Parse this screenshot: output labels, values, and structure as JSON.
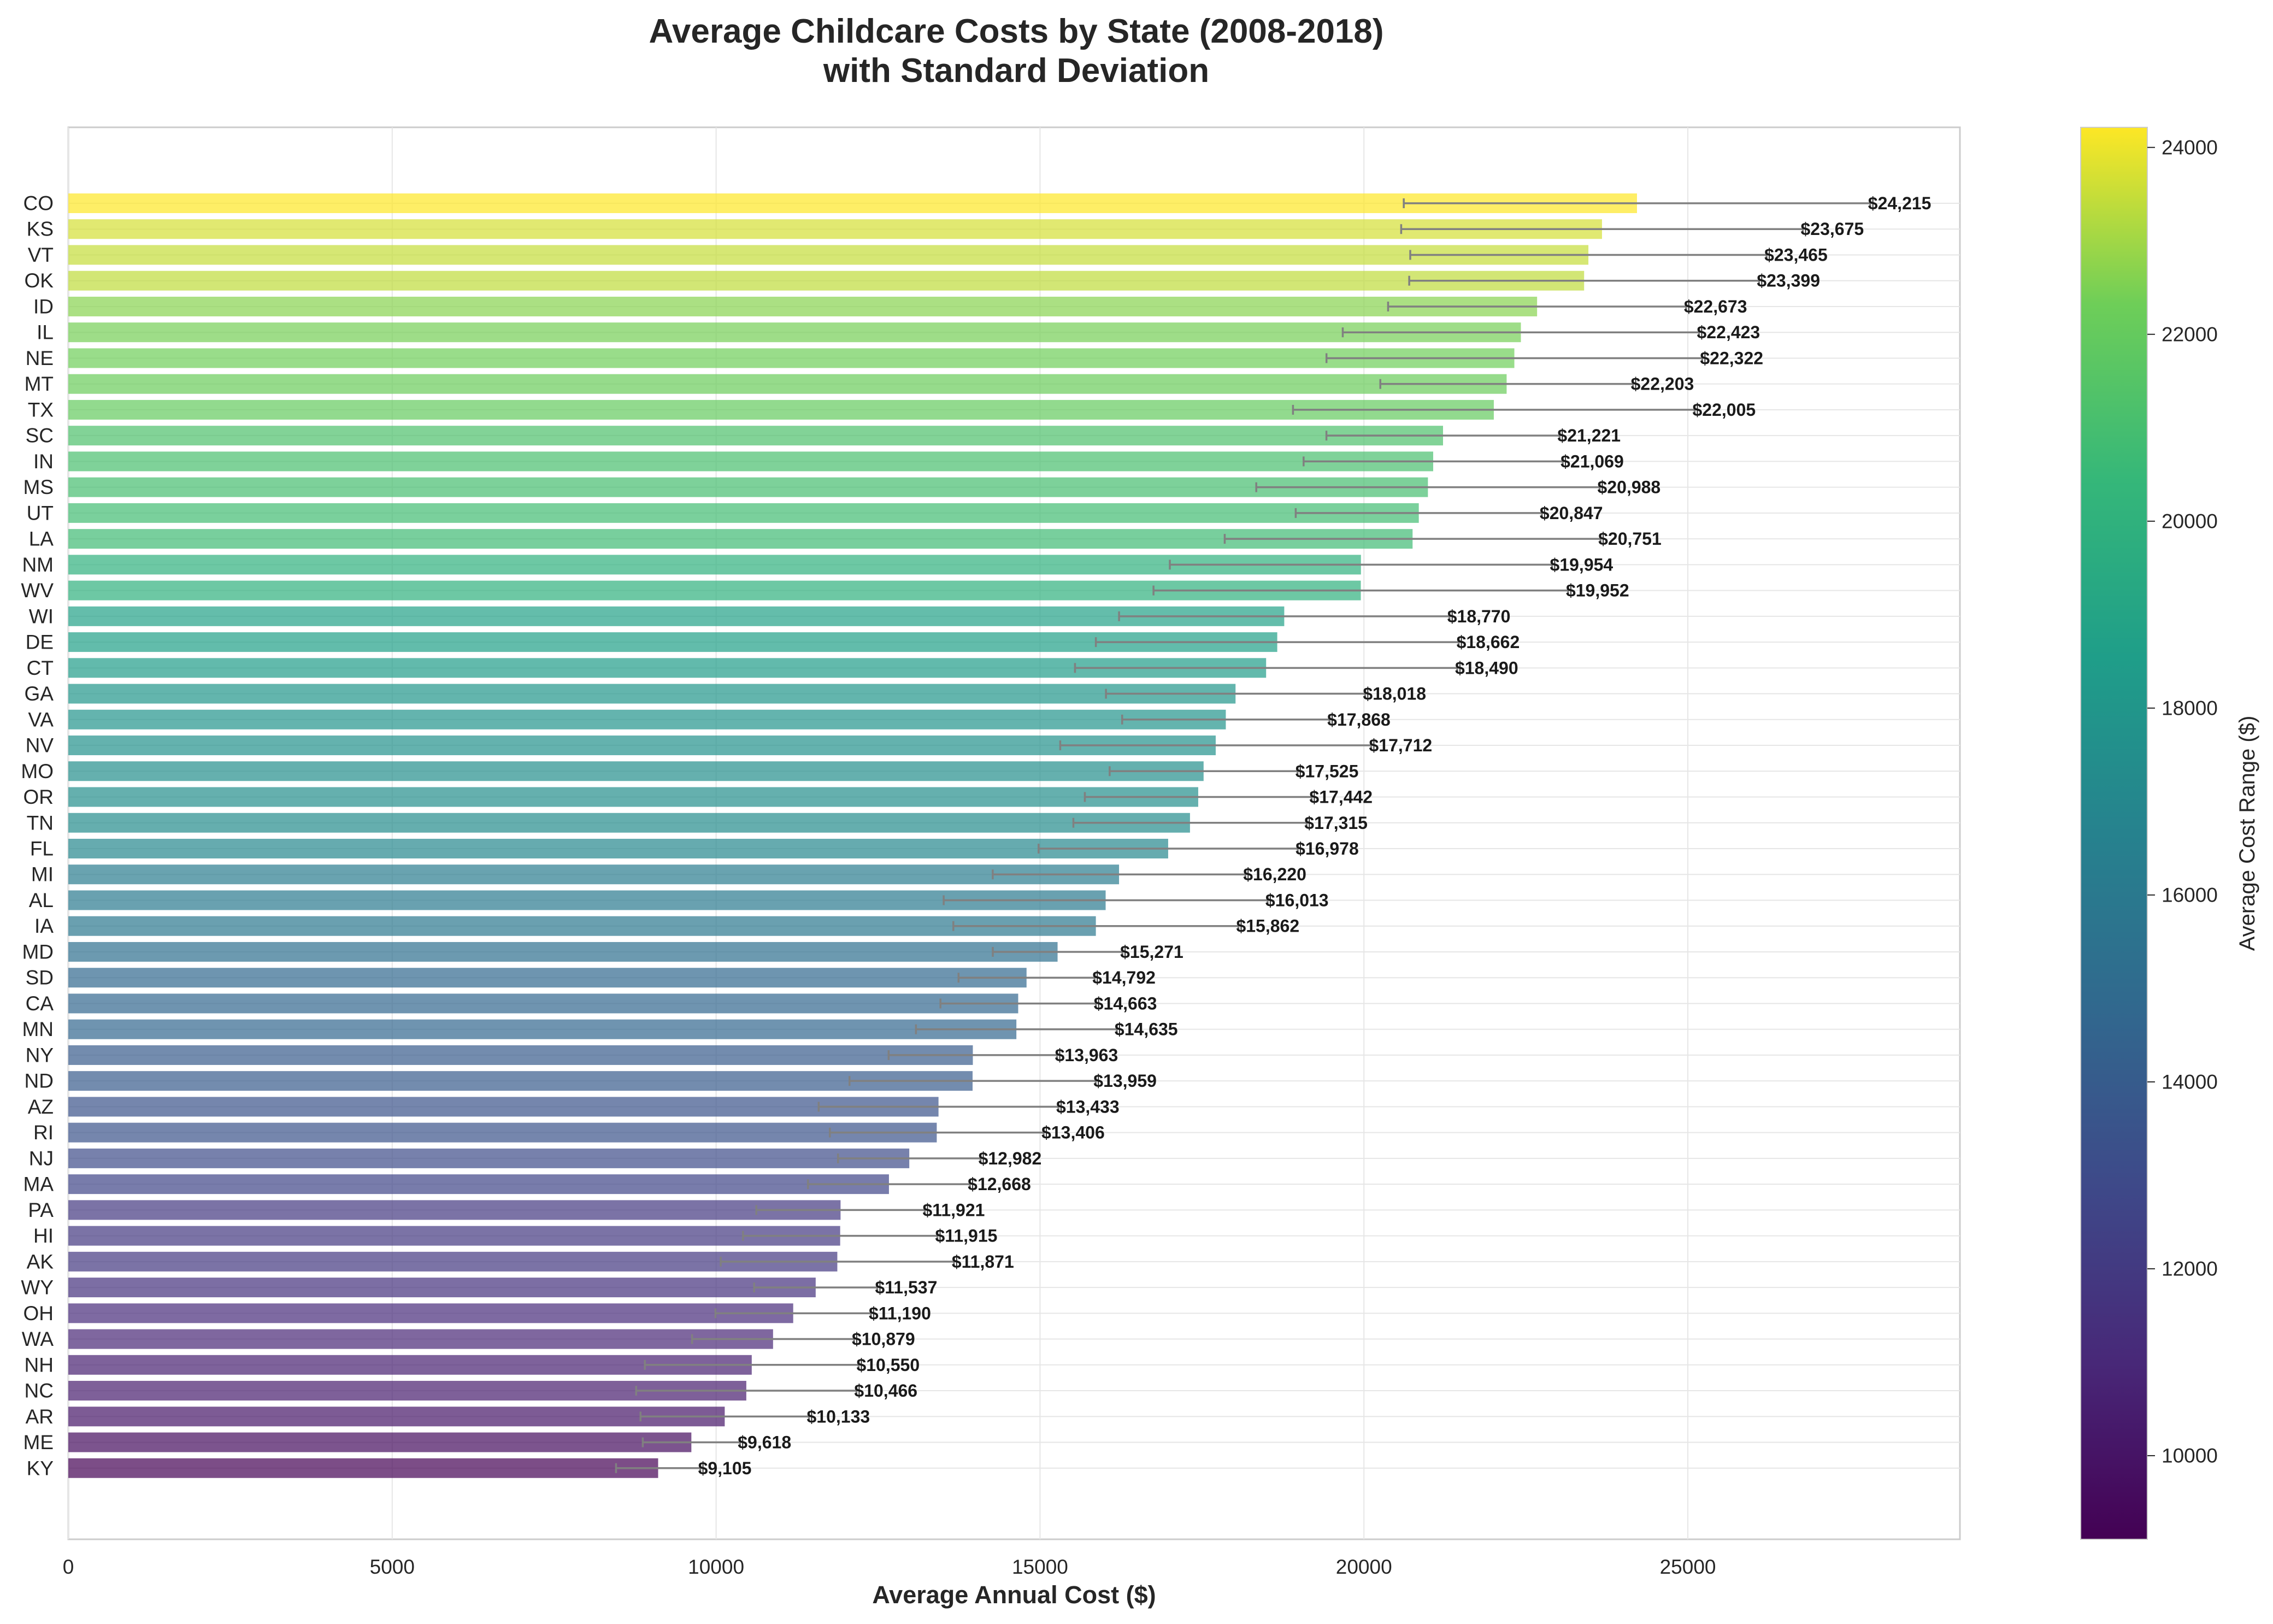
{
  "chart_data": {
    "type": "bar",
    "orientation": "horizontal",
    "title_line1": "Average Childcare Costs by State (2008-2018)",
    "title_line2": "with Standard Deviation",
    "xlabel": "Average Annual Cost ($)",
    "xlim": [
      0,
      29200
    ],
    "x_ticks": [
      0,
      5000,
      10000,
      15000,
      20000,
      25000
    ],
    "grid": true,
    "colorbar": {
      "label": "Average Cost Range ($)",
      "colormap": "viridis",
      "range": [
        9105,
        24215
      ],
      "ticks": [
        10000,
        12000,
        14000,
        16000,
        18000,
        20000,
        22000,
        24000
      ]
    },
    "bar_alpha": 0.7,
    "errorbar_color": "#808080",
    "categories": [
      "CO",
      "KS",
      "VT",
      "OK",
      "ID",
      "IL",
      "NE",
      "MT",
      "TX",
      "SC",
      "IN",
      "MS",
      "UT",
      "LA",
      "NM",
      "WV",
      "WI",
      "DE",
      "CT",
      "GA",
      "VA",
      "NV",
      "MO",
      "OR",
      "TN",
      "FL",
      "MI",
      "AL",
      "IA",
      "MD",
      "SD",
      "CA",
      "MN",
      "NY",
      "ND",
      "AZ",
      "RI",
      "NJ",
      "MA",
      "PA",
      "HI",
      "AK",
      "WY",
      "OH",
      "WA",
      "NH",
      "NC",
      "AR",
      "ME",
      "KY"
    ],
    "values": [
      24215,
      23675,
      23465,
      23399,
      22673,
      22423,
      22322,
      22203,
      22005,
      21221,
      21069,
      20988,
      20847,
      20751,
      19954,
      19952,
      18770,
      18662,
      18490,
      18018,
      17868,
      17712,
      17525,
      17442,
      17315,
      16978,
      16220,
      16013,
      15862,
      15271,
      14792,
      14663,
      14635,
      13963,
      13959,
      13433,
      13406,
      12982,
      12668,
      11921,
      11915,
      11871,
      11537,
      11190,
      10879,
      10550,
      10466,
      10133,
      9618,
      9105
    ],
    "std": [
      3600,
      3100,
      2750,
      2700,
      2300,
      2750,
      2900,
      1950,
      3100,
      1800,
      2000,
      2650,
      1900,
      2900,
      2950,
      3200,
      2550,
      2800,
      2950,
      2000,
      1600,
      2400,
      1450,
      1750,
      1800,
      2000,
      1950,
      2500,
      2200,
      1000,
      1050,
      1200,
      1550,
      1300,
      1900,
      1850,
      1650,
      1100,
      1250,
      1300,
      1500,
      1800,
      950,
      1200,
      1250,
      1650,
      1700,
      1300,
      750,
      650
    ],
    "value_labels": [
      "$24,215",
      "$23,675",
      "$23,465",
      "$23,399",
      "$22,673",
      "$22,423",
      "$22,322",
      "$22,203",
      "$22,005",
      "$21,221",
      "$21,069",
      "$20,988",
      "$20,847",
      "$20,751",
      "$19,954",
      "$19,952",
      "$18,770",
      "$18,662",
      "$18,490",
      "$18,018",
      "$17,868",
      "$17,712",
      "$17,525",
      "$17,442",
      "$17,315",
      "$16,978",
      "$16,220",
      "$16,013",
      "$15,862",
      "$15,271",
      "$14,792",
      "$14,663",
      "$14,635",
      "$13,963",
      "$13,959",
      "$13,433",
      "$13,406",
      "$12,982",
      "$12,668",
      "$11,921",
      "$11,915",
      "$11,871",
      "$11,537",
      "$11,190",
      "$10,879",
      "$10,550",
      "$10,466",
      "$10,133",
      "$9,618",
      "$9,105"
    ]
  }
}
